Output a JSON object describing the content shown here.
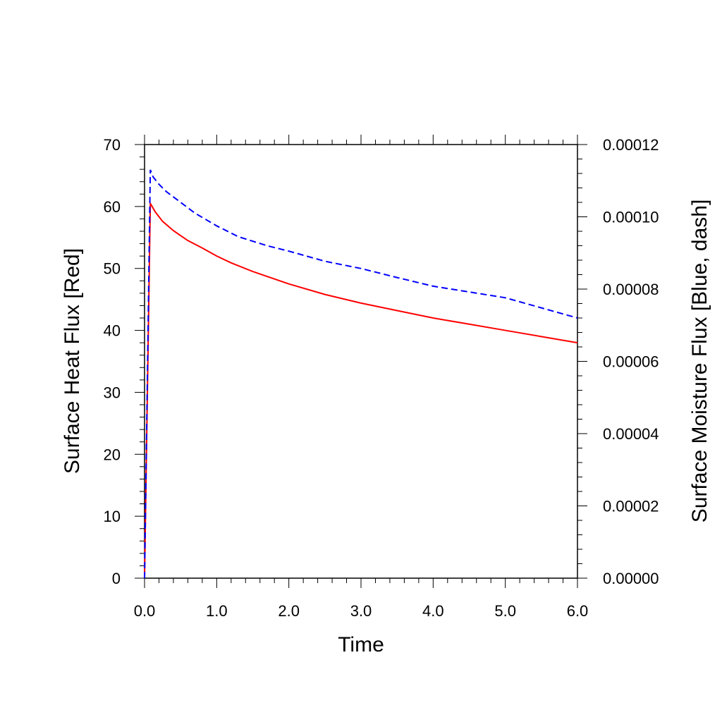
{
  "chart_data": {
    "type": "line",
    "xlabel": "Time",
    "ylabel_left": "Surface Heat Flux [Red]",
    "ylabel_right": "Surface Moisture Flux [Blue, dash]",
    "xlim": [
      0,
      6
    ],
    "ylim_left": [
      0,
      70
    ],
    "ylim_right": [
      0,
      0.00012
    ],
    "x_ticks": [
      "0.0",
      "1.0",
      "2.0",
      "3.0",
      "4.0",
      "5.0",
      "6.0"
    ],
    "y_left_ticks": [
      "0",
      "10",
      "20",
      "30",
      "40",
      "50",
      "60",
      "70"
    ],
    "y_right_ticks": [
      "0.00000",
      "0.00002",
      "0.00004",
      "0.00006",
      "0.00008",
      "0.00010",
      "0.00012"
    ],
    "grid": false,
    "series": [
      {
        "axis": "left",
        "color": "#ff0000",
        "dash": "solid",
        "x": [
          0,
          0.08,
          0.15,
          0.25,
          0.4,
          0.6,
          0.8,
          1.0,
          1.2,
          1.5,
          2.0,
          2.5,
          3.0,
          3.5,
          4.0,
          4.5,
          5.0,
          5.5,
          6.0
        ],
        "y": [
          0,
          60.5,
          59.1,
          57.6,
          56.1,
          54.5,
          53.3,
          52.0,
          50.9,
          49.5,
          47.5,
          45.8,
          44.4,
          43.2,
          42.0,
          41.0,
          40.0,
          39.0,
          38.0
        ]
      },
      {
        "axis": "right",
        "color": "#0000ff",
        "dash": "dashed",
        "x": [
          0,
          0.08,
          0.12,
          0.2,
          0.3,
          0.5,
          0.7,
          1.0,
          1.3,
          1.7,
          2.0,
          2.5,
          3.0,
          3.5,
          4.0,
          4.5,
          5.0,
          5.5,
          6.0
        ],
        "y": [
          0,
          0.000113,
          0.000111,
          0.000109,
          0.000107,
          0.000104,
          0.000101,
          9.75e-05,
          9.45e-05,
          9.2e-05,
          9.05e-05,
          8.77e-05,
          8.57e-05,
          8.32e-05,
          8.08e-05,
          7.92e-05,
          7.76e-05,
          7.48e-05,
          7.2e-05
        ]
      }
    ]
  }
}
